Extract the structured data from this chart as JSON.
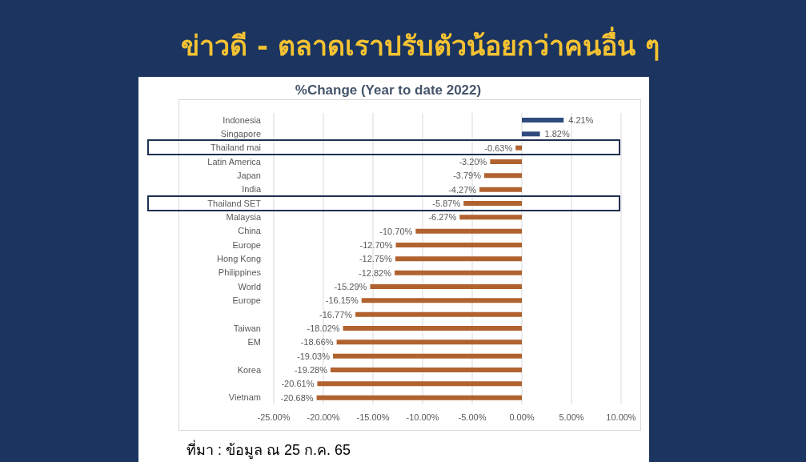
{
  "chart_data": {
    "type": "bar",
    "orientation": "horizontal",
    "title": "ข่าวดี - ตลาดเราปรับตัวน้อยกว่าคนอื่น ๆ",
    "subtitle": "%Change (Year to date 2022)",
    "categories": [
      "Indonesia",
      "Singapore",
      "Thailand mai",
      "Latin America",
      "Japan",
      "India",
      "Thailand SET",
      "Malaysia",
      "China",
      "Europe",
      "Hong Kong",
      "Philippines",
      "World",
      "Europe",
      null,
      "Taiwan",
      "EM",
      null,
      "Korea",
      null,
      "Vietnam"
    ],
    "values": [
      4.21,
      1.82,
      -0.63,
      -3.2,
      -3.79,
      -4.27,
      -5.87,
      -6.27,
      -10.7,
      -12.7,
      -12.75,
      -12.82,
      -15.29,
      -16.15,
      -16.77,
      -18.02,
      -18.66,
      -19.03,
      -19.28,
      -20.61,
      -20.68
    ],
    "colors": [
      "#2f4b7e",
      "#2f4b7e",
      "#b0622f",
      "#b0622f",
      "#b0622f",
      "#b0622f",
      "#b0622f",
      "#b0622f",
      "#b0622f",
      "#b0622f",
      "#b0622f",
      "#b0622f",
      "#b0622f",
      "#b0622f",
      "#b0622f",
      "#b0622f",
      "#b0622f",
      "#b0622f",
      "#b0622f",
      "#b0622f",
      "#b0622f"
    ],
    "value_labels": [
      "4.21%",
      "1.82%",
      "-0.63%",
      "-3.20%",
      "-3.79%",
      "-4.27%",
      "-5.87%",
      "-6.27%",
      "-10.70%",
      "-12.70%",
      "-12.75%",
      "-12.82%",
      "-15.29%",
      "-16.15%",
      "-16.77%",
      "-18.02%",
      "-18.66%",
      "-19.03%",
      "-19.28%",
      "-20.61%",
      "-20.68%"
    ],
    "xlim": [
      -25,
      10
    ],
    "xticks": [
      {
        "value": -25,
        "label": "-25.00%"
      },
      {
        "value": -20,
        "label": "-20.00%"
      },
      {
        "value": -15,
        "label": "-15.00%"
      },
      {
        "value": -10,
        "label": "-10.00%"
      },
      {
        "value": -5,
        "label": "-5.00%"
      },
      {
        "value": 0,
        "label": "0.00%"
      },
      {
        "value": 5,
        "label": "5.00%"
      },
      {
        "value": 10,
        "label": "10.00%"
      }
    ],
    "grid": "x",
    "annotations": [
      "ที่มา : ข้อมูล ณ 25 ก.ค. 65"
    ]
  }
}
